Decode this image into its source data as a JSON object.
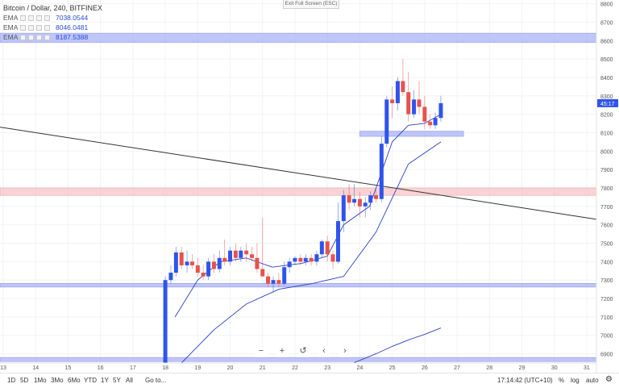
{
  "legend": {
    "title": "Bitcoin / Dollar, 240, BITFINEX",
    "emas": [
      {
        "label": "EMA",
        "value": "7038.0544"
      },
      {
        "label": "EMA",
        "value": "8046.0481"
      },
      {
        "label": "EMA",
        "value": "8187.5388"
      }
    ]
  },
  "exit_fullscreen": "Exit Full Screen (ESC)",
  "bottom": {
    "timeframes": [
      "1D",
      "5D",
      "1Mo",
      "3Mo",
      "6Mo",
      "YTD",
      "1Y",
      "5Y",
      "All"
    ],
    "goto": "Go to...",
    "clock": "17:14:42 (UTC+10)",
    "options": [
      "%",
      "log",
      "auto"
    ]
  },
  "zoom_controls": [
    "−",
    "+",
    "↺",
    "‹",
    "›"
  ],
  "colors": {
    "up": "#2f54eb",
    "down": "#e5534b",
    "band_blue": "#aab3f5",
    "band_red": "#f7c4c4",
    "trend": "#333333",
    "ema": "#2a3fc4"
  },
  "chart_data": {
    "type": "candlestick",
    "title": "Bitcoin / Dollar, 240, BITFINEX",
    "x_ticks": [
      "13",
      "14",
      "15",
      "16",
      "17",
      "18",
      "19",
      "20",
      "21",
      "22",
      "23",
      "24",
      "25",
      "26",
      "27",
      "28",
      "29",
      "30",
      "31"
    ],
    "y_ticks": [
      6900,
      7000,
      7100,
      7200,
      7300,
      7400,
      7500,
      7600,
      7700,
      7800,
      7900,
      8000,
      8100,
      8200,
      8300,
      8400,
      8500,
      8600,
      8700,
      8800
    ],
    "ylim": [
      6850,
      8820
    ],
    "last_price_label": "45:17",
    "candles": [
      {
        "t": 18.0,
        "o": 6790,
        "h": 7320,
        "l": 6790,
        "c": 7300
      },
      {
        "t": 18.17,
        "o": 7300,
        "h": 7380,
        "l": 7280,
        "c": 7340
      },
      {
        "t": 18.33,
        "o": 7340,
        "h": 7480,
        "l": 7320,
        "c": 7450
      },
      {
        "t": 18.5,
        "o": 7450,
        "h": 7480,
        "l": 7360,
        "c": 7380
      },
      {
        "t": 18.67,
        "o": 7380,
        "h": 7460,
        "l": 7340,
        "c": 7400
      },
      {
        "t": 18.83,
        "o": 7400,
        "h": 7440,
        "l": 7360,
        "c": 7380
      },
      {
        "t": 19.0,
        "o": 7380,
        "h": 7420,
        "l": 7320,
        "c": 7340
      },
      {
        "t": 19.17,
        "o": 7340,
        "h": 7380,
        "l": 7300,
        "c": 7320
      },
      {
        "t": 19.33,
        "o": 7320,
        "h": 7420,
        "l": 7300,
        "c": 7400
      },
      {
        "t": 19.5,
        "o": 7400,
        "h": 7440,
        "l": 7340,
        "c": 7360
      },
      {
        "t": 19.67,
        "o": 7360,
        "h": 7460,
        "l": 7340,
        "c": 7420
      },
      {
        "t": 19.83,
        "o": 7420,
        "h": 7520,
        "l": 7380,
        "c": 7400
      },
      {
        "t": 20.0,
        "o": 7400,
        "h": 7480,
        "l": 7380,
        "c": 7460
      },
      {
        "t": 20.17,
        "o": 7460,
        "h": 7500,
        "l": 7400,
        "c": 7420
      },
      {
        "t": 20.33,
        "o": 7420,
        "h": 7480,
        "l": 7400,
        "c": 7460
      },
      {
        "t": 20.5,
        "o": 7460,
        "h": 7500,
        "l": 7400,
        "c": 7440
      },
      {
        "t": 20.67,
        "o": 7440,
        "h": 7480,
        "l": 7400,
        "c": 7420
      },
      {
        "t": 20.83,
        "o": 7420,
        "h": 7500,
        "l": 7340,
        "c": 7360
      },
      {
        "t": 21.0,
        "o": 7360,
        "h": 7640,
        "l": 7320,
        "c": 7320
      },
      {
        "t": 21.17,
        "o": 7320,
        "h": 7340,
        "l": 7260,
        "c": 7280
      },
      {
        "t": 21.33,
        "o": 7280,
        "h": 7320,
        "l": 7230,
        "c": 7300
      },
      {
        "t": 21.5,
        "o": 7300,
        "h": 7340,
        "l": 7260,
        "c": 7280
      },
      {
        "t": 21.67,
        "o": 7280,
        "h": 7400,
        "l": 7270,
        "c": 7370
      },
      {
        "t": 21.83,
        "o": 7370,
        "h": 7420,
        "l": 7340,
        "c": 7400
      },
      {
        "t": 22.0,
        "o": 7400,
        "h": 7430,
        "l": 7380,
        "c": 7420
      },
      {
        "t": 22.17,
        "o": 7420,
        "h": 7440,
        "l": 7380,
        "c": 7400
      },
      {
        "t": 22.33,
        "o": 7400,
        "h": 7440,
        "l": 7380,
        "c": 7420
      },
      {
        "t": 22.5,
        "o": 7420,
        "h": 7440,
        "l": 7380,
        "c": 7400
      },
      {
        "t": 22.67,
        "o": 7400,
        "h": 7460,
        "l": 7380,
        "c": 7440
      },
      {
        "t": 22.83,
        "o": 7440,
        "h": 7520,
        "l": 7420,
        "c": 7510
      },
      {
        "t": 23.0,
        "o": 7510,
        "h": 7540,
        "l": 7400,
        "c": 7440
      },
      {
        "t": 23.17,
        "o": 7440,
        "h": 7460,
        "l": 7360,
        "c": 7400
      },
      {
        "t": 23.33,
        "o": 7400,
        "h": 7720,
        "l": 7390,
        "c": 7620
      },
      {
        "t": 23.5,
        "o": 7620,
        "h": 7790,
        "l": 7560,
        "c": 7760
      },
      {
        "t": 23.67,
        "o": 7760,
        "h": 7820,
        "l": 7680,
        "c": 7720
      },
      {
        "t": 23.83,
        "o": 7720,
        "h": 7820,
        "l": 7700,
        "c": 7740
      },
      {
        "t": 24.0,
        "o": 7740,
        "h": 7780,
        "l": 7640,
        "c": 7700
      },
      {
        "t": 24.17,
        "o": 7700,
        "h": 7750,
        "l": 7640,
        "c": 7720
      },
      {
        "t": 24.33,
        "o": 7720,
        "h": 7780,
        "l": 7680,
        "c": 7760
      },
      {
        "t": 24.5,
        "o": 7760,
        "h": 7790,
        "l": 7720,
        "c": 7740
      },
      {
        "t": 24.67,
        "o": 7740,
        "h": 8080,
        "l": 7720,
        "c": 8040
      },
      {
        "t": 24.83,
        "o": 8040,
        "h": 8300,
        "l": 8020,
        "c": 8280
      },
      {
        "t": 25.0,
        "o": 8280,
        "h": 8350,
        "l": 8180,
        "c": 8260
      },
      {
        "t": 25.17,
        "o": 8260,
        "h": 8400,
        "l": 8220,
        "c": 8380
      },
      {
        "t": 25.33,
        "o": 8380,
        "h": 8500,
        "l": 8300,
        "c": 8320
      },
      {
        "t": 25.5,
        "o": 8320,
        "h": 8430,
        "l": 8160,
        "c": 8200
      },
      {
        "t": 25.67,
        "o": 8200,
        "h": 8330,
        "l": 8180,
        "c": 8280
      },
      {
        "t": 25.83,
        "o": 8280,
        "h": 8380,
        "l": 8200,
        "c": 8240
      },
      {
        "t": 26.0,
        "o": 8240,
        "h": 8300,
        "l": 8120,
        "c": 8160
      },
      {
        "t": 26.17,
        "o": 8160,
        "h": 8200,
        "l": 8120,
        "c": 8140
      },
      {
        "t": 26.33,
        "o": 8140,
        "h": 8210,
        "l": 8120,
        "c": 8180
      },
      {
        "t": 26.5,
        "o": 8180,
        "h": 8300,
        "l": 8160,
        "c": 8260
      }
    ],
    "horizontal_bands": [
      {
        "color": "blue",
        "y_low": 8590,
        "y_high": 8640,
        "t_start": 12.9,
        "t_end": 31.3
      },
      {
        "color": "red",
        "y_low": 7760,
        "y_high": 7800,
        "t_start": 12.9,
        "t_end": 31.3
      },
      {
        "color": "blue",
        "y_low": 7262,
        "y_high": 7282,
        "t_start": 12.9,
        "t_end": 31.3
      },
      {
        "color": "blue",
        "y_low": 6858,
        "y_high": 6880,
        "t_start": 12.9,
        "t_end": 31.3
      },
      {
        "color": "blue",
        "y_low": 8080,
        "y_high": 8108,
        "t_start": 24.0,
        "t_end": 27.2
      }
    ],
    "trend_line": {
      "t1": 12.9,
      "y1": 8130,
      "t2": 31.3,
      "y2": 7630
    },
    "ema_lines": [
      {
        "name": "EMA",
        "points": [
          [
            18.5,
            6850
          ],
          [
            19.5,
            7030
          ],
          [
            20.5,
            7170
          ],
          [
            21.5,
            7250
          ],
          [
            22.5,
            7280
          ],
          [
            23.5,
            7320
          ],
          [
            24.5,
            7560
          ],
          [
            25.5,
            7930
          ],
          [
            26.5,
            8050
          ]
        ]
      },
      {
        "name": "EMA",
        "points": [
          [
            18.3,
            7100
          ],
          [
            19,
            7300
          ],
          [
            19.7,
            7400
          ],
          [
            20.5,
            7420
          ],
          [
            21.3,
            7370
          ],
          [
            22.2,
            7390
          ],
          [
            23,
            7430
          ],
          [
            23.5,
            7600
          ],
          [
            24.3,
            7700
          ],
          [
            24.7,
            7900
          ],
          [
            25,
            8050
          ],
          [
            25.5,
            8140
          ],
          [
            26,
            8150
          ],
          [
            26.5,
            8200
          ]
        ]
      },
      {
        "name": "EMA",
        "points": [
          [
            23.8,
            6850
          ],
          [
            24.5,
            6900
          ],
          [
            25.0,
            6940
          ],
          [
            25.5,
            6975
          ],
          [
            26.0,
            7005
          ],
          [
            26.5,
            7040
          ]
        ]
      }
    ]
  }
}
